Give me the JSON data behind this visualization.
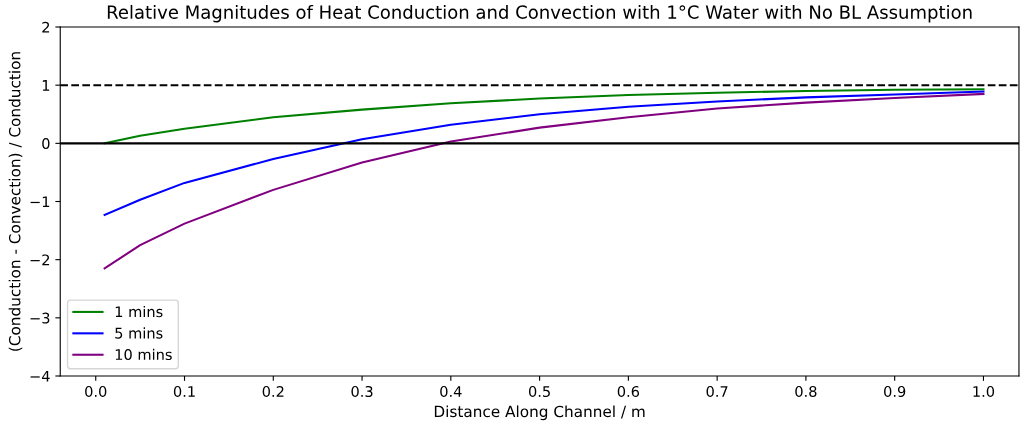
{
  "chart_data": {
    "type": "line",
    "title": "Relative Magnitudes of Heat Conduction and Convection with 1°C Water with No BL Assumption",
    "xlabel": "Distance Along Channel / m",
    "ylabel": "(Conduction - Convection) / Conduction",
    "x": [
      0.01,
      0.05,
      0.1,
      0.2,
      0.3,
      0.4,
      0.5,
      0.6,
      0.7,
      0.8,
      0.9,
      1.0
    ],
    "series": [
      {
        "name": "1 mins",
        "color": "#008000",
        "values": [
          0.0,
          0.13,
          0.25,
          0.45,
          0.58,
          0.69,
          0.77,
          0.83,
          0.87,
          0.9,
          0.92,
          0.93
        ]
      },
      {
        "name": "5 mins",
        "color": "#0000ff",
        "values": [
          -1.23,
          -0.97,
          -0.68,
          -0.27,
          0.07,
          0.32,
          0.5,
          0.63,
          0.72,
          0.79,
          0.84,
          0.89
        ]
      },
      {
        "name": "10 mins",
        "color": "#800080",
        "values": [
          -2.15,
          -1.75,
          -1.38,
          -0.8,
          -0.33,
          0.03,
          0.27,
          0.45,
          0.6,
          0.7,
          0.78,
          0.85
        ]
      }
    ],
    "xlim": [
      -0.04,
      1.04
    ],
    "ylim": [
      -4,
      2
    ],
    "xticks": [
      {
        "value": 0,
        "label": "0.0"
      },
      0.1,
      0.2,
      0.3,
      0.4,
      0.5,
      0.6,
      0.7,
      0.8,
      0.9,
      {
        "value": 1,
        "label": "1.0"
      }
    ],
    "yticks": [
      {
        "value": -4,
        "label": "−4"
      },
      {
        "value": -3,
        "label": "−3"
      },
      {
        "value": -2,
        "label": "−2"
      },
      {
        "value": -1,
        "label": "−1"
      },
      0,
      1,
      2
    ],
    "ref_lines": [
      {
        "axis": "y",
        "value": 1,
        "color": "#000000",
        "line_style": "dashed"
      },
      {
        "axis": "y",
        "value": 0,
        "color": "#000000",
        "line_style": "solid"
      }
    ],
    "legend": "bottom left",
    "grid": false,
    "marker": "none",
    "line_style": "solid"
  }
}
